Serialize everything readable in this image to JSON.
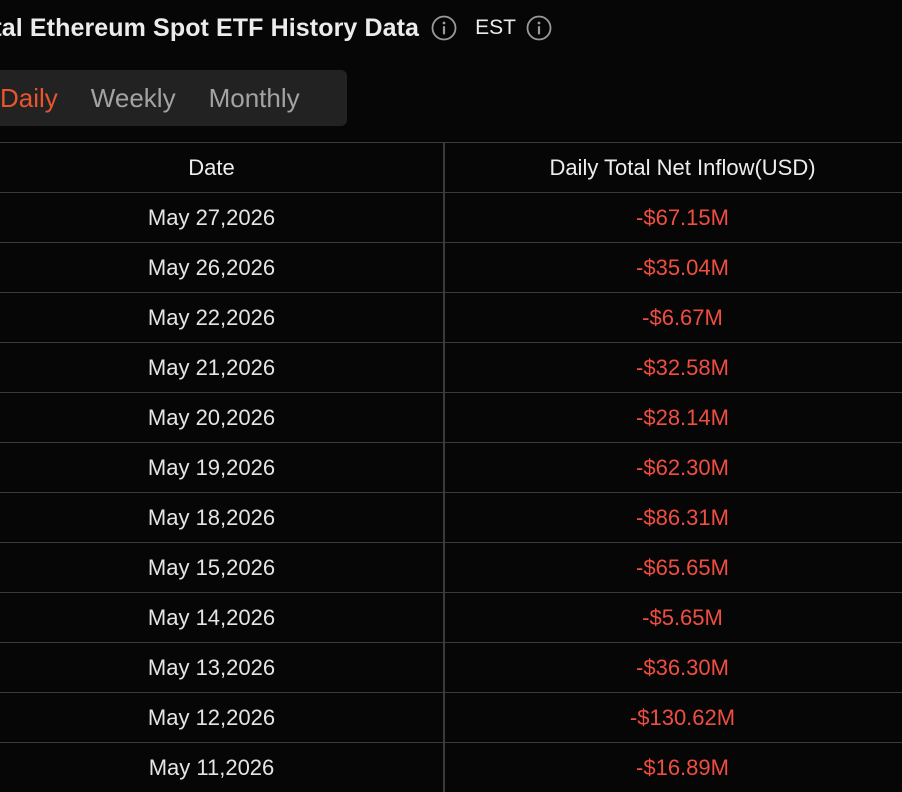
{
  "header": {
    "title": "otal Ethereum Spot ETF History Data",
    "timezone": "EST",
    "info_icon": "info-circle-icon"
  },
  "tabs": [
    {
      "label": "Daily",
      "active": true
    },
    {
      "label": "Weekly",
      "active": false
    },
    {
      "label": "Monthly",
      "active": false
    }
  ],
  "colors": {
    "accent": "#e8562f",
    "negative": "#ef4e41",
    "background": "#060606",
    "tab_bg": "#222222",
    "grid_line": "#3a3a3a"
  },
  "table": {
    "columns": [
      "Date",
      "Daily Total Net Inflow(USD)"
    ],
    "rows": [
      {
        "date": "May 27,2026",
        "inflow": "-$67.15M"
      },
      {
        "date": "May 26,2026",
        "inflow": "-$35.04M"
      },
      {
        "date": "May 22,2026",
        "inflow": "-$6.67M"
      },
      {
        "date": "May 21,2026",
        "inflow": "-$32.58M"
      },
      {
        "date": "May 20,2026",
        "inflow": "-$28.14M"
      },
      {
        "date": "May 19,2026",
        "inflow": "-$62.30M"
      },
      {
        "date": "May 18,2026",
        "inflow": "-$86.31M"
      },
      {
        "date": "May 15,2026",
        "inflow": "-$65.65M"
      },
      {
        "date": "May 14,2026",
        "inflow": "-$5.65M"
      },
      {
        "date": "May 13,2026",
        "inflow": "-$36.30M"
      },
      {
        "date": "May 12,2026",
        "inflow": "-$130.62M"
      },
      {
        "date": "May 11,2026",
        "inflow": "-$16.89M"
      }
    ]
  }
}
